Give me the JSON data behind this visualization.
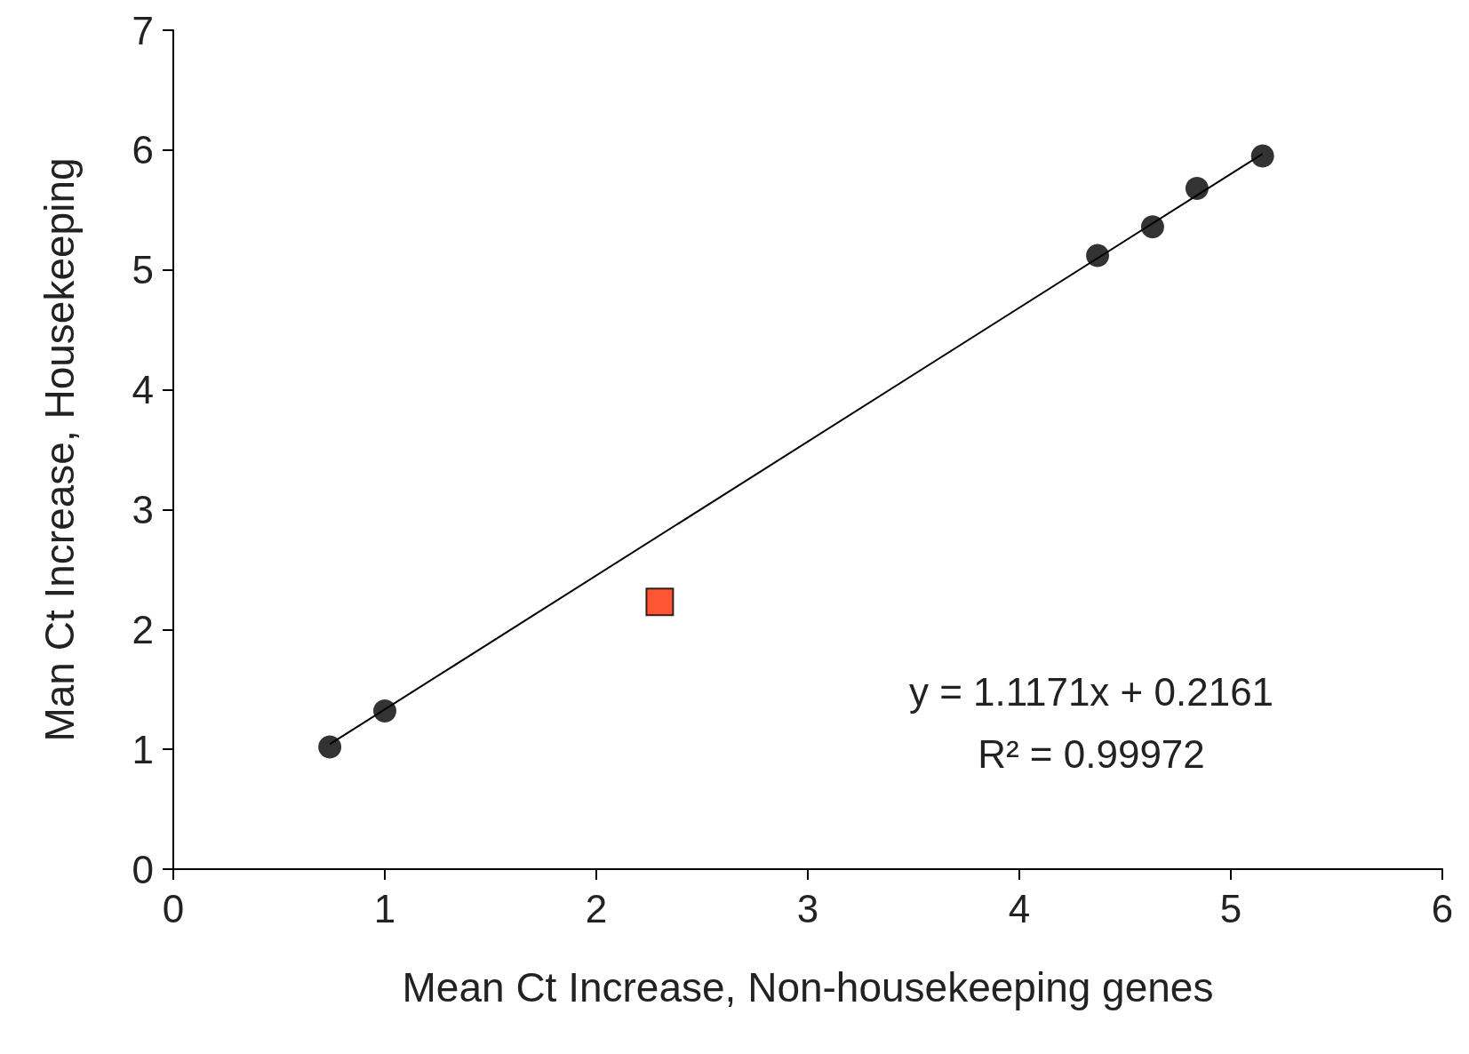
{
  "chart_data": {
    "type": "scatter",
    "xlabel": "Mean Ct Increase, Non-housekeeping genes",
    "ylabel": "Man Ct Increase, Housekeeping",
    "xlim": [
      0,
      6
    ],
    "xticks": [
      0,
      1,
      2,
      3,
      4,
      5,
      6
    ],
    "ylim": [
      0,
      7
    ],
    "yticks": [
      0,
      1,
      2,
      3,
      4,
      5,
      6,
      7
    ],
    "grid": false,
    "annotations": [
      "y = 1.1171x + 0.2161",
      "R² = 0.99972"
    ],
    "series": [
      {
        "type": "scatter",
        "marker": "circle",
        "color": "#000000",
        "x": [
          0.74,
          1.0,
          4.37,
          4.63,
          4.84,
          5.15
        ],
        "values": [
          1.02,
          1.32,
          5.12,
          5.36,
          5.68,
          5.95
        ]
      },
      {
        "type": "scatter",
        "marker": "square",
        "color": "#ff2a00",
        "x": [
          2.3
        ],
        "values": [
          2.23
        ]
      },
      {
        "type": "line",
        "marker": "none",
        "color": "#000000",
        "x": [
          0.74,
          5.15
        ],
        "values": [
          1.043,
          5.969
        ]
      }
    ]
  }
}
